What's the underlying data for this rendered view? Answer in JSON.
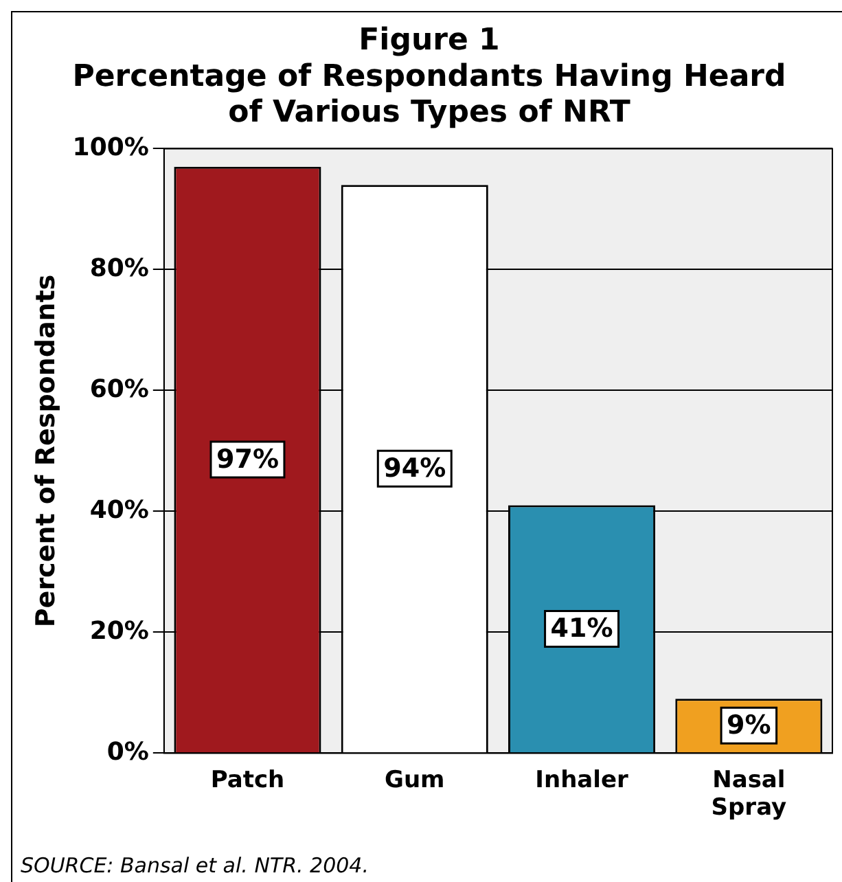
{
  "chart_data": {
    "type": "bar",
    "title": "Figure 1",
    "subtitle": "Percentage of Respondants Having Heard of Various Types of NRT",
    "ylabel": "Percent of Respondants",
    "categories": [
      "Patch",
      "Gum",
      "Inhaler",
      "Nasal Spray"
    ],
    "values": [
      97,
      94,
      41,
      9
    ],
    "colors": [
      "#a0191e",
      "#ffffff",
      "#2a8fb0",
      "#f0a020"
    ],
    "value_labels": [
      "97%",
      "94%",
      "41%",
      "9%"
    ],
    "ylim": [
      0,
      100
    ],
    "yticks": [
      {
        "value": 0,
        "label": "0%"
      },
      {
        "value": 20,
        "label": "20%"
      },
      {
        "value": 40,
        "label": "40%"
      },
      {
        "value": 60,
        "label": "60%"
      },
      {
        "value": 80,
        "label": "80%"
      },
      {
        "value": 100,
        "label": "100%"
      }
    ],
    "grid": "y",
    "legend": false,
    "annotations": [
      "SOURCE: Bansal et al. NTR. 2004."
    ]
  }
}
